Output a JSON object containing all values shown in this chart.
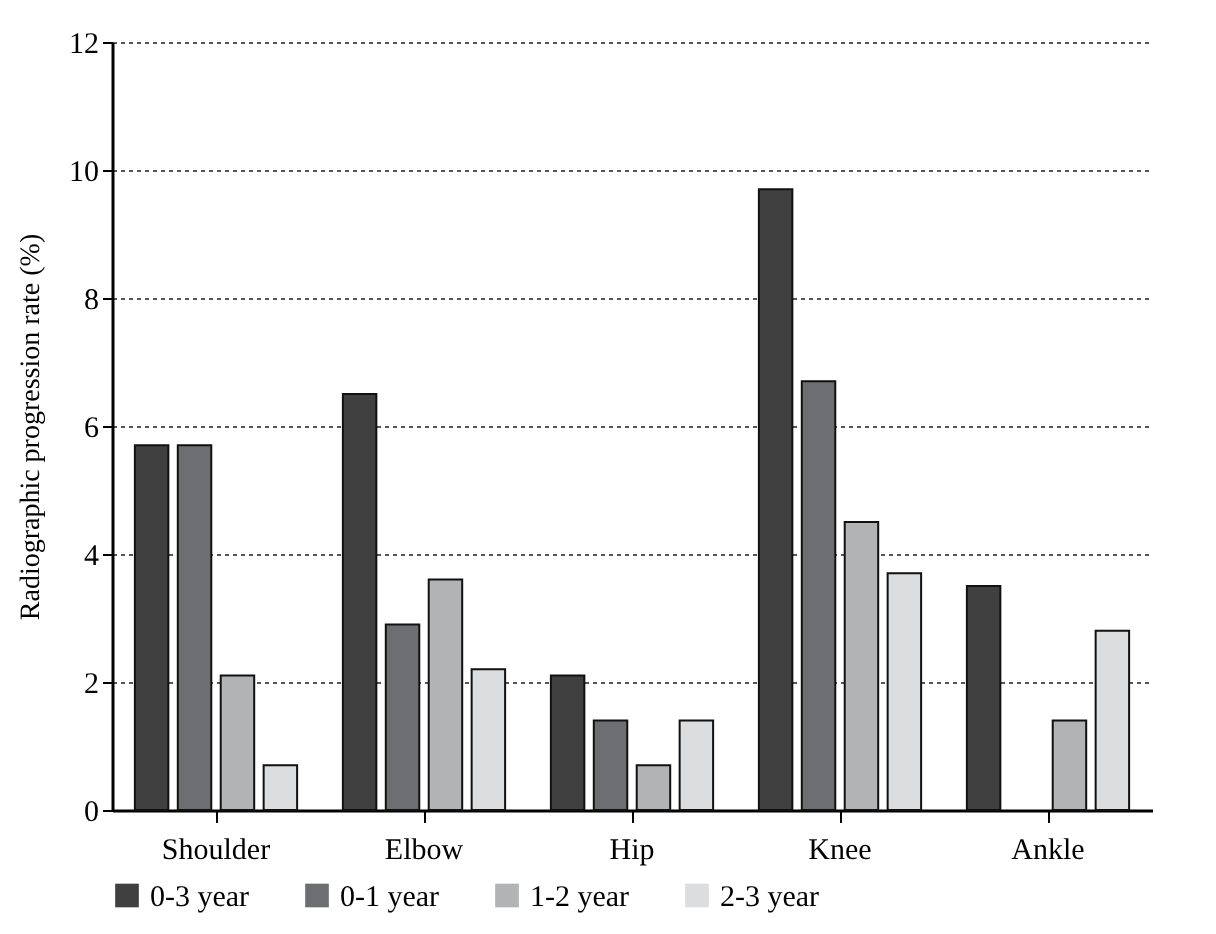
{
  "chart_data": {
    "type": "bar",
    "ylabel": "Radiographic progression rate (%)",
    "categories": [
      "Shoulder",
      "Elbow",
      "Hip",
      "Knee",
      "Ankle"
    ],
    "series": [
      {
        "name": "0-3 year",
        "color": "#404040",
        "values": [
          5.7,
          6.5,
          2.1,
          9.7,
          3.5
        ]
      },
      {
        "name": "0-1 year",
        "color": "#6d6e71",
        "values": [
          5.7,
          2.9,
          1.4,
          6.7,
          null
        ]
      },
      {
        "name": "1-2 year",
        "color": "#b1b3b5",
        "values": [
          2.1,
          3.6,
          0.7,
          4.5,
          1.4
        ]
      },
      {
        "name": "2-3 year",
        "color": "#dcdddf",
        "values": [
          0.7,
          2.2,
          1.4,
          3.7,
          2.8
        ]
      }
    ],
    "ylim": [
      0,
      12
    ],
    "yticks": [
      0,
      2,
      4,
      6,
      8,
      10,
      12
    ],
    "grid": "y",
    "legend": "bottom"
  }
}
